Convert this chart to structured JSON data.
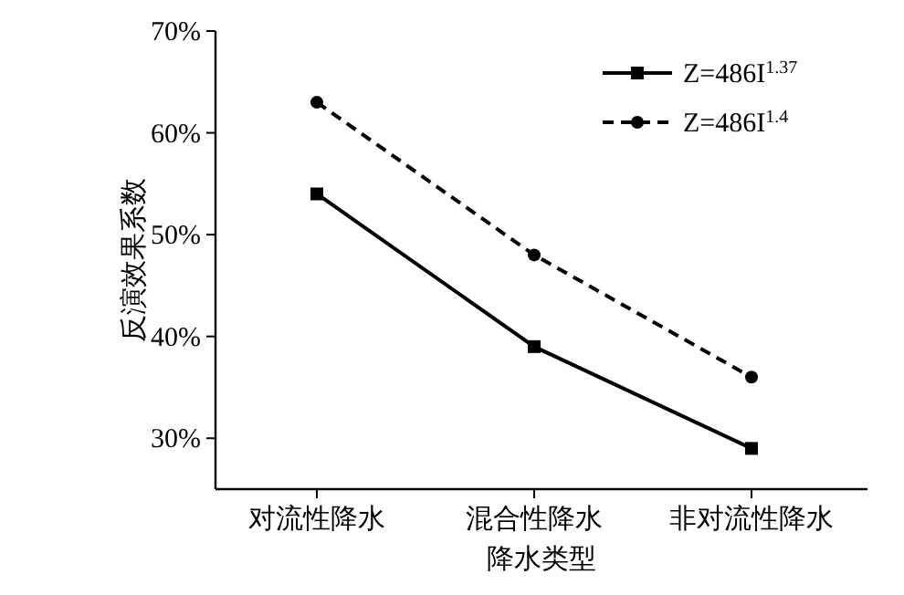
{
  "chart_data": {
    "type": "line",
    "ylabel": "反演效果系数",
    "xlabel": "降水类型",
    "categories": [
      "对流性降水",
      "混合性降水",
      "非对流性降水"
    ],
    "series": [
      {
        "name": "Z=486I$^{1.37}$",
        "color": "#000000",
        "values": [
          54,
          39,
          29
        ],
        "marker": "square",
        "line_style": "solid"
      },
      {
        "name": "Z=486I$^{1.4}$",
        "color": "#000000",
        "values": [
          63,
          48,
          36
        ],
        "marker": "circle",
        "line_style": "dashed"
      }
    ],
    "ylim": [
      25,
      70
    ],
    "yticks": [
      {
        "value": 30,
        "label": "30%"
      },
      {
        "value": 40,
        "label": "40%"
      },
      {
        "value": 50,
        "label": "50%"
      },
      {
        "value": 60,
        "label": "60%"
      },
      {
        "value": 70,
        "label": "70%"
      }
    ],
    "grid": false,
    "legend": "top right"
  }
}
